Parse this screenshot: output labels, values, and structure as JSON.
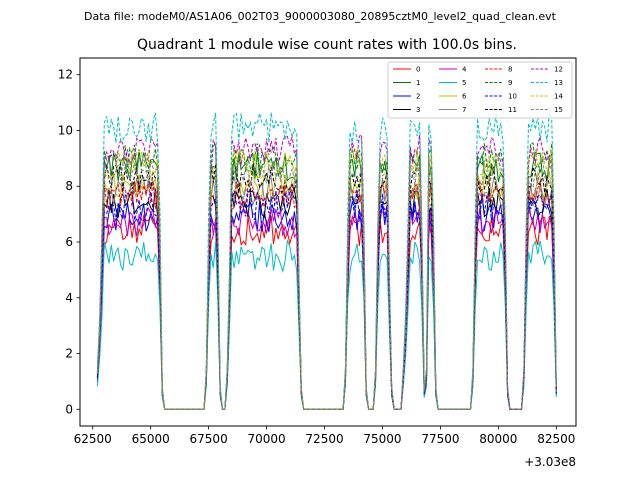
{
  "chart_data": {
    "type": "line",
    "suptitle": "Data file: modeM0/AS1A06_002T03_9000003080_20895cztM0_level2_quad_clean.evt",
    "title": "Quadrant 1 module wise count rates with 100.0s bins.",
    "xlabel": "",
    "ylabel": "",
    "x_offset_label": "+3.03e8",
    "xlim": [
      61950,
      83350
    ],
    "ylim": [
      -0.6,
      12.6
    ],
    "x_ticks": [
      62500,
      65000,
      67500,
      70000,
      72500,
      75000,
      77500,
      80000,
      82500
    ],
    "x_tick_labels": [
      "62500",
      "65000",
      "67500",
      "70000",
      "72500",
      "75000",
      "77500",
      "80000",
      "82500"
    ],
    "y_ticks": [
      0,
      2,
      4,
      6,
      8,
      10,
      12
    ],
    "y_tick_labels": [
      "0",
      "2",
      "4",
      "6",
      "8",
      "10",
      "12"
    ],
    "segments": [
      {
        "start": 62700,
        "end": 65500,
        "rise": 300,
        "fall": 150
      },
      {
        "start": 67400,
        "end": 68000,
        "rise": 150,
        "fall": 150
      },
      {
        "start": 68300,
        "end": 71500,
        "rise": 200,
        "fall": 200
      },
      {
        "start": 73400,
        "end": 74300,
        "rise": 150,
        "fall": 150
      },
      {
        "start": 74700,
        "end": 75400,
        "rise": 150,
        "fall": 200
      },
      {
        "start": 75900,
        "end": 76800,
        "rise": 300,
        "fall": 150
      },
      {
        "start": 76900,
        "end": 77300,
        "rise": 100,
        "fall": 150
      },
      {
        "start": 78900,
        "end": 80400,
        "rise": 150,
        "fall": 150
      },
      {
        "start": 81100,
        "end": 82500,
        "rise": 150,
        "fall": 150
      }
    ],
    "series": [
      {
        "name": "0",
        "color": "#ff0000",
        "dash": "solid",
        "level": 6.4
      },
      {
        "name": "1",
        "color": "#008000",
        "dash": "solid",
        "level": 8.7
      },
      {
        "name": "2",
        "color": "#0000ff",
        "dash": "solid",
        "level": 6.9
      },
      {
        "name": "3",
        "color": "#000000",
        "dash": "solid",
        "level": 7.4
      },
      {
        "name": "4",
        "color": "#bf00bf",
        "dash": "solid",
        "level": 6.7
      },
      {
        "name": "5",
        "color": "#00bfbf",
        "dash": "solid",
        "level": 5.5
      },
      {
        "name": "6",
        "color": "#bfbf00",
        "dash": "solid",
        "level": 8.0
      },
      {
        "name": "7",
        "color": "#808080",
        "dash": "solid",
        "level": 7.8
      },
      {
        "name": "8",
        "color": "#ff0000",
        "dash": "dashed",
        "level": 7.7
      },
      {
        "name": "9",
        "color": "#008000",
        "dash": "dashed",
        "level": 9.0
      },
      {
        "name": "10",
        "color": "#0000ff",
        "dash": "dashed",
        "level": 7.3
      },
      {
        "name": "11",
        "color": "#000000",
        "dash": "dashed",
        "level": 8.3
      },
      {
        "name": "12",
        "color": "#bf00bf",
        "dash": "dashed",
        "level": 9.3
      },
      {
        "name": "13",
        "color": "#00bfbf",
        "dash": "dashed",
        "level": 10.1
      },
      {
        "name": "14",
        "color": "#bfbf00",
        "dash": "dashed",
        "level": 8.8
      },
      {
        "name": "15",
        "color": "#808080",
        "dash": "dashed",
        "level": 8.5
      }
    ],
    "legend_position": "top-right",
    "legend_columns": 4
  }
}
